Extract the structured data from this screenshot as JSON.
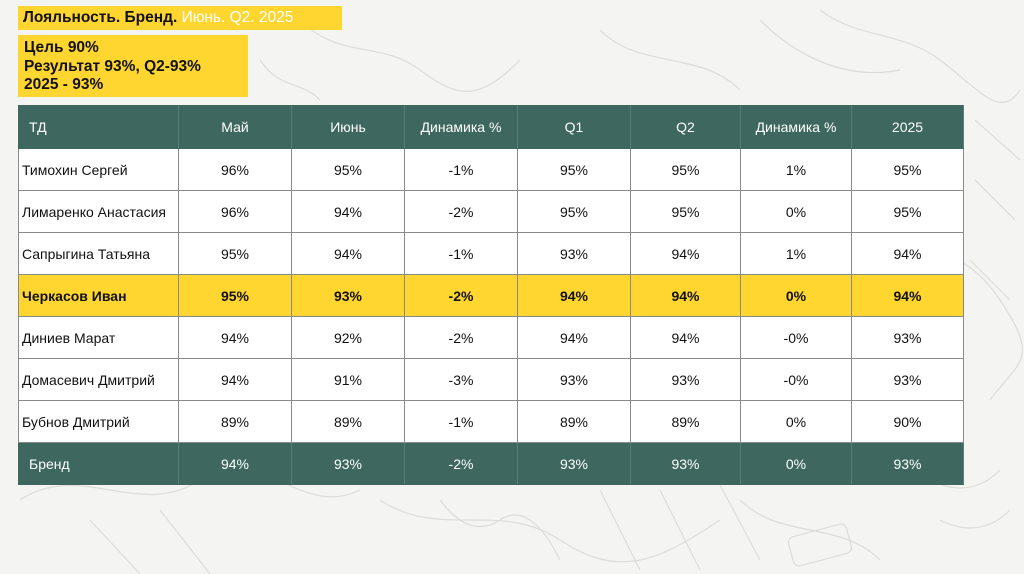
{
  "title": {
    "bold": "Лояльность. Бренд.",
    "light": "Июнь. Q2. 2025"
  },
  "goal_box": {
    "lines": [
      "Цель 90%",
      "Результат 93%, Q2-93%",
      "2025 - 93%"
    ]
  },
  "table": {
    "headers": [
      "ТД",
      "Май",
      "Июнь",
      "Динамика %",
      "Q1",
      "Q2",
      "Динамика %",
      "2025"
    ],
    "rows": [
      {
        "cells": [
          "Тимохин Сергей",
          "96%",
          "95%",
          "-1%",
          "95%",
          "95%",
          "1%",
          "95%"
        ]
      },
      {
        "cells": [
          "Лимаренко Анастасия",
          "96%",
          "94%",
          "-2%",
          "95%",
          "95%",
          "0%",
          "95%"
        ]
      },
      {
        "cells": [
          "Сапрыгина Татьяна",
          "95%",
          "94%",
          "-1%",
          "93%",
          "94%",
          "1%",
          "94%"
        ]
      },
      {
        "cells": [
          "Черкасов Иван",
          "95%",
          "93%",
          "-2%",
          "94%",
          "94%",
          "0%",
          "94%"
        ],
        "highlight": true
      },
      {
        "cells": [
          "Диниев Марат",
          "94%",
          "92%",
          "-2%",
          "94%",
          "94%",
          "-0%",
          "93%"
        ]
      },
      {
        "cells": [
          "Домасевич Дмитрий",
          "94%",
          "91%",
          "-3%",
          "93%",
          "93%",
          "-0%",
          "93%"
        ]
      },
      {
        "cells": [
          "Бубнов Дмитрий",
          "89%",
          "89%",
          "-1%",
          "89%",
          "89%",
          "0%",
          "90%"
        ]
      }
    ],
    "total": {
      "cells": [
        "Бренд",
        "94%",
        "93%",
        "-2%",
        "93%",
        "93%",
        "0%",
        "93%"
      ]
    }
  },
  "colors": {
    "accent_yellow": "#ffd630",
    "header_green": "#3d675f",
    "background": "#f4f4f2"
  }
}
